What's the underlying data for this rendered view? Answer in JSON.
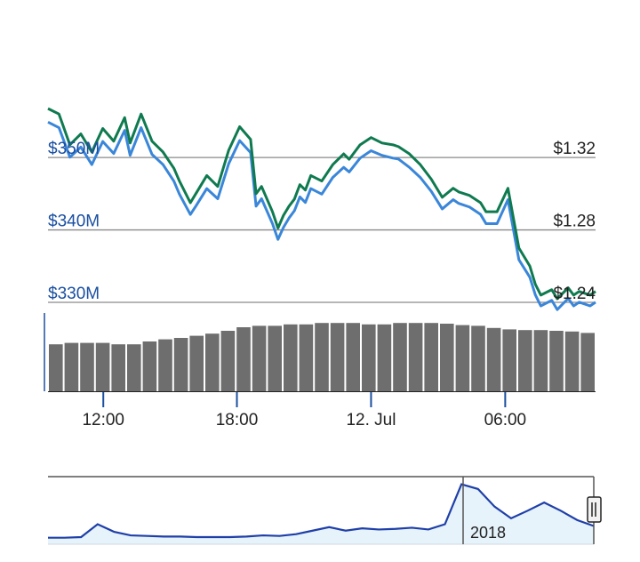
{
  "chart_data": {
    "type": "line",
    "series": [
      {
        "x": [
          0,
          2,
          4,
          6,
          8,
          10,
          12,
          14,
          15,
          17,
          19,
          21,
          23,
          24,
          26,
          27,
          29,
          31,
          33,
          35,
          37,
          38,
          39,
          41,
          42,
          43,
          44,
          45,
          46,
          47,
          48,
          50,
          52,
          54,
          55,
          57,
          59,
          61,
          63,
          64,
          66,
          68,
          70,
          72,
          74,
          75,
          77,
          79,
          80,
          82,
          84,
          86,
          88,
          89,
          90,
          92,
          93,
          95,
          96,
          97,
          99,
          100
        ],
        "values": [
          1.347,
          1.344,
          1.327,
          1.333,
          1.323,
          1.336,
          1.329,
          1.342,
          1.328,
          1.344,
          1.329,
          1.323,
          1.314,
          1.307,
          1.295,
          1.3,
          1.31,
          1.304,
          1.324,
          1.337,
          1.33,
          1.3,
          1.304,
          1.29,
          1.281,
          1.288,
          1.293,
          1.297,
          1.305,
          1.302,
          1.31,
          1.307,
          1.316,
          1.322,
          1.319,
          1.327,
          1.331,
          1.328,
          1.327,
          1.326,
          1.322,
          1.316,
          1.308,
          1.298,
          1.303,
          1.301,
          1.299,
          1.295,
          1.29,
          1.29,
          1.303,
          1.27,
          1.26,
          1.25,
          1.244,
          1.247,
          1.242,
          1.248,
          1.244,
          1.246,
          1.244,
          1.246
        ],
        "color": "#0f7a4f"
      },
      {
        "values": [
          342.4,
          341.8,
          338.6,
          339.7,
          337.8,
          340.3,
          339.0,
          341.5,
          338.8,
          341.8,
          338.9,
          337.8,
          336.0,
          334.6,
          332.4,
          333.3,
          335.2,
          334.1,
          337.9,
          340.4,
          339.1,
          333.3,
          334.1,
          331.4,
          329.7,
          331.0,
          332.0,
          332.8,
          334.3,
          333.7,
          335.2,
          334.6,
          336.4,
          337.5,
          337.0,
          338.5,
          339.3,
          338.8,
          338.5,
          338.4,
          337.5,
          336.4,
          334.9,
          333.0,
          334.0,
          333.6,
          333.2,
          332.4,
          331.4,
          331.4,
          334.0,
          327.5,
          325.6,
          323.7,
          322.5,
          323.1,
          322.1,
          323.3,
          322.5,
          322.9,
          322.5,
          322.9
        ],
        "color": "#3a86d9"
      }
    ],
    "y_left": {
      "ticks": [
        "$330M",
        "$340M",
        "$350M"
      ],
      "values": [
        330,
        340,
        350
      ]
    },
    "y_right": {
      "ticks": [
        "$1.24",
        "$1.28",
        "$1.32"
      ],
      "values": [
        1.24,
        1.28,
        1.32
      ],
      "ylim": [
        1.24,
        1.35
      ]
    },
    "x_axis": {
      "ticks": [
        {
          "label": "12:00",
          "pos": 10.1
        },
        {
          "label": "18:00",
          "pos": 34.5
        },
        {
          "label": "12. Jul",
          "pos": 59.0
        },
        {
          "label": "06:00",
          "pos": 83.5
        }
      ]
    },
    "volume": {
      "color": "#6e6e6e",
      "values": [
        0.66,
        0.68,
        0.68,
        0.68,
        0.66,
        0.66,
        0.7,
        0.73,
        0.75,
        0.78,
        0.81,
        0.85,
        0.9,
        0.92,
        0.92,
        0.94,
        0.94,
        0.96,
        0.96,
        0.96,
        0.94,
        0.94,
        0.96,
        0.96,
        0.96,
        0.95,
        0.93,
        0.92,
        0.89,
        0.87,
        0.86,
        0.86,
        0.85,
        0.84,
        0.82
      ]
    },
    "navigator": {
      "label": "2018",
      "color": "#1f3fa8",
      "fill": "#e6f3fb",
      "values": [
        0.02,
        0.02,
        0.03,
        0.25,
        0.12,
        0.06,
        0.05,
        0.04,
        0.04,
        0.03,
        0.03,
        0.03,
        0.04,
        0.06,
        0.05,
        0.08,
        0.14,
        0.2,
        0.14,
        0.18,
        0.16,
        0.17,
        0.19,
        0.16,
        0.25,
        0.93,
        0.85,
        0.55,
        0.35,
        0.48,
        0.62,
        0.48,
        0.32,
        0.22
      ]
    },
    "grid": true
  }
}
